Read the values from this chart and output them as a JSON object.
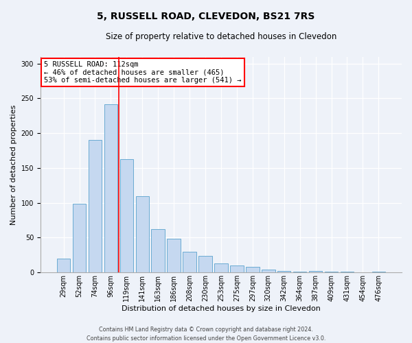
{
  "title": "5, RUSSELL ROAD, CLEVEDON, BS21 7RS",
  "subtitle": "Size of property relative to detached houses in Clevedon",
  "xlabel": "Distribution of detached houses by size in Clevedon",
  "ylabel": "Number of detached properties",
  "bar_labels": [
    "29sqm",
    "52sqm",
    "74sqm",
    "96sqm",
    "119sqm",
    "141sqm",
    "163sqm",
    "186sqm",
    "208sqm",
    "230sqm",
    "253sqm",
    "275sqm",
    "297sqm",
    "320sqm",
    "342sqm",
    "364sqm",
    "387sqm",
    "409sqm",
    "431sqm",
    "454sqm",
    "476sqm"
  ],
  "bar_values": [
    20,
    99,
    190,
    242,
    163,
    110,
    62,
    48,
    30,
    24,
    13,
    10,
    8,
    4,
    2,
    1,
    2,
    1,
    1,
    0,
    1
  ],
  "bar_color": "#c5d8f0",
  "bar_edge_color": "#6aabd2",
  "vline_color": "red",
  "vline_x_index": 4,
  "ylim": [
    0,
    310
  ],
  "yticks": [
    0,
    50,
    100,
    150,
    200,
    250,
    300
  ],
  "annotation_title": "5 RUSSELL ROAD: 112sqm",
  "annotation_line1": "← 46% of detached houses are smaller (465)",
  "annotation_line2": "53% of semi-detached houses are larger (541) →",
  "annotation_box_color": "#ffffff",
  "annotation_box_edge": "red",
  "footer1": "Contains HM Land Registry data © Crown copyright and database right 2024.",
  "footer2": "Contains public sector information licensed under the Open Government Licence v3.0.",
  "bg_color": "#eef2f9",
  "plot_bg_color": "#eef2f9",
  "title_fontsize": 10,
  "subtitle_fontsize": 8.5,
  "xlabel_fontsize": 8,
  "ylabel_fontsize": 8,
  "tick_fontsize": 7,
  "ann_fontsize": 7.5,
  "footer_fontsize": 5.8
}
